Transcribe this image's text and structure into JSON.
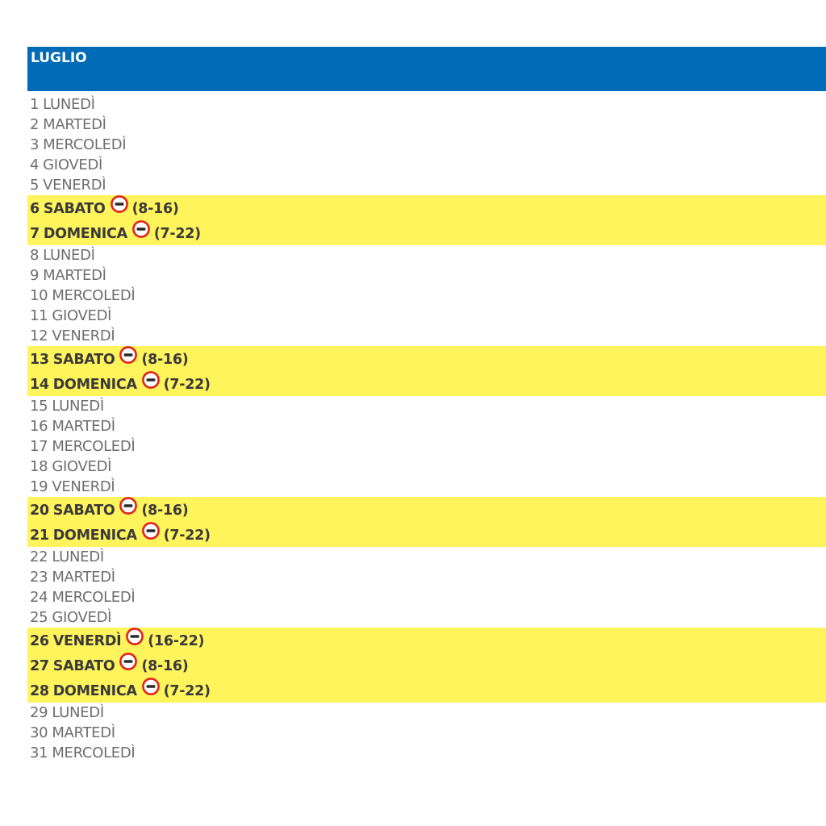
{
  "month": {
    "title": "LUGLIO"
  },
  "colors": {
    "header_bg": "#006bb6",
    "highlight_bg": "#fff45c",
    "sign_ring": "#e2231a"
  },
  "days": [
    {
      "num": "1",
      "name": "LUNEDÌ",
      "restriction": null
    },
    {
      "num": "2",
      "name": "MARTEDÌ",
      "restriction": null
    },
    {
      "num": "3",
      "name": "MERCOLEDÌ",
      "restriction": null
    },
    {
      "num": "4",
      "name": "GIOVEDÌ",
      "restriction": null
    },
    {
      "num": "5",
      "name": "VENERDÌ",
      "restriction": null
    },
    {
      "num": "6",
      "name": "SABATO",
      "restriction": "(8-16)",
      "icon": "no-entry-sign-icon"
    },
    {
      "num": "7",
      "name": "DOMENICA",
      "restriction": "(7-22)",
      "icon": "no-entry-sign-icon"
    },
    {
      "num": "8",
      "name": "LUNEDÌ",
      "restriction": null
    },
    {
      "num": "9",
      "name": "MARTEDÌ",
      "restriction": null
    },
    {
      "num": "10",
      "name": "MERCOLEDÌ",
      "restriction": null
    },
    {
      "num": "11",
      "name": "GIOVEDÌ",
      "restriction": null
    },
    {
      "num": "12",
      "name": "VENERDÌ",
      "restriction": null
    },
    {
      "num": "13",
      "name": "SABATO",
      "restriction": "(8-16)",
      "icon": "no-entry-sign-icon"
    },
    {
      "num": "14",
      "name": "DOMENICA",
      "restriction": "(7-22)",
      "icon": "no-entry-sign-icon"
    },
    {
      "num": "15",
      "name": "LUNEDÌ",
      "restriction": null
    },
    {
      "num": "16",
      "name": "MARTEDÌ",
      "restriction": null
    },
    {
      "num": "17",
      "name": "MERCOLEDÌ",
      "restriction": null
    },
    {
      "num": "18",
      "name": "GIOVEDÌ",
      "restriction": null
    },
    {
      "num": "19",
      "name": "VENERDÌ",
      "restriction": null
    },
    {
      "num": "20",
      "name": "SABATO",
      "restriction": "(8-16)",
      "icon": "no-entry-sign-icon"
    },
    {
      "num": "21",
      "name": "DOMENICA",
      "restriction": "(7-22)",
      "icon": "no-entry-sign-icon"
    },
    {
      "num": "22",
      "name": "LUNEDÌ",
      "restriction": null
    },
    {
      "num": "23",
      "name": "MARTEDÌ",
      "restriction": null
    },
    {
      "num": "24",
      "name": "MERCOLEDÌ",
      "restriction": null
    },
    {
      "num": "25",
      "name": "GIOVEDÌ",
      "restriction": null
    },
    {
      "num": "26",
      "name": "VENERDÌ",
      "restriction": "(16-22)",
      "icon": "no-entry-sign-icon"
    },
    {
      "num": "27",
      "name": "SABATO",
      "restriction": "(8-16)",
      "icon": "no-entry-sign-icon"
    },
    {
      "num": "28",
      "name": "DOMENICA",
      "restriction": "(7-22)",
      "icon": "no-entry-sign-icon"
    },
    {
      "num": "29",
      "name": "LUNEDÌ",
      "restriction": null
    },
    {
      "num": "30",
      "name": "MARTEDÌ",
      "restriction": null
    },
    {
      "num": "31",
      "name": "MERCOLEDÌ",
      "restriction": null
    }
  ]
}
